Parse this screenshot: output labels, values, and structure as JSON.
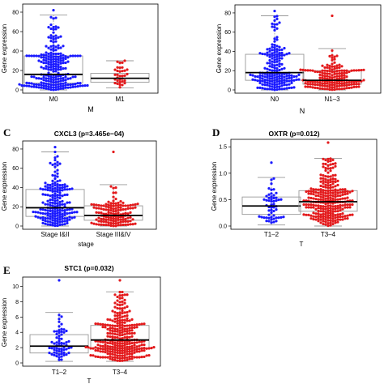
{
  "colors": {
    "group_a": "#1a1aff",
    "group_b": "#e31a1c",
    "box": "#999999",
    "median": "#000000",
    "frame": "#000000"
  },
  "chart_data": [
    {
      "type": "boxplot-beeswarm",
      "panel_letter": "",
      "title": "",
      "xlabel": "M",
      "ylabel": "Gene expression",
      "ylim": [
        0,
        85
      ],
      "yticks": [
        "0",
        "20",
        "40",
        "60",
        "80"
      ],
      "ytick_values": [
        0,
        20,
        40,
        60,
        80
      ],
      "categories": [
        "M0",
        "M1"
      ],
      "boxes": [
        {
          "min": 0,
          "q1": 7,
          "median": 16,
          "q3": 35,
          "max": 77,
          "n": 230,
          "outlier_max": 82,
          "skew": 2.3
        },
        {
          "min": 2,
          "q1": 8,
          "median": 12,
          "q3": 17,
          "max": 30,
          "n": 32,
          "outlier_max": 30,
          "skew": 1.5
        }
      ]
    },
    {
      "type": "boxplot-beeswarm",
      "panel_letter": "",
      "title": "",
      "xlabel": "N",
      "ylabel": "Gene expression",
      "ylim": [
        0,
        85
      ],
      "yticks": [
        "0",
        "20",
        "40",
        "60",
        "80"
      ],
      "ytick_values": [
        0,
        20,
        40,
        60,
        80
      ],
      "categories": [
        "N0",
        "N1–3"
      ],
      "boxes": [
        {
          "min": 0,
          "q1": 10,
          "median": 18,
          "q3": 37,
          "max": 77,
          "n": 190,
          "outlier_max": 82,
          "skew": 2.1
        },
        {
          "min": 0,
          "q1": 6,
          "median": 10,
          "q3": 20,
          "max": 43,
          "n": 170,
          "outlier_max": 77,
          "skew": 2.8
        }
      ]
    },
    {
      "type": "boxplot-beeswarm",
      "panel_letter": "C",
      "title": "CXCL3 (p=3.465e−04)",
      "xlabel": "stage",
      "ylabel": "Gene expression",
      "ylim": [
        0,
        85
      ],
      "yticks": [
        "0",
        "20",
        "40",
        "60",
        "80"
      ],
      "ytick_values": [
        0,
        20,
        40,
        60,
        80
      ],
      "categories": [
        "Stage I&II",
        "Stage III&IV"
      ],
      "boxes": [
        {
          "min": 0,
          "q1": 10,
          "median": 19,
          "q3": 38,
          "max": 77,
          "n": 190,
          "outlier_max": 82,
          "skew": 2.1
        },
        {
          "min": 0,
          "q1": 6,
          "median": 11,
          "q3": 21,
          "max": 43,
          "n": 140,
          "outlier_max": 77,
          "skew": 2.7
        }
      ]
    },
    {
      "type": "boxplot-beeswarm",
      "panel_letter": "D",
      "title": "OXTR (p=0.012)",
      "xlabel": "T",
      "ylabel": "Gene expression",
      "ylim": [
        0,
        1.58
      ],
      "yticks": [
        "0.0",
        "0.5",
        "1.0",
        "1.5"
      ],
      "ytick_values": [
        0,
        0.5,
        1.0,
        1.5
      ],
      "categories": [
        "T1–2",
        "T3–4"
      ],
      "boxes": [
        {
          "min": 0.02,
          "q1": 0.22,
          "median": 0.38,
          "q3": 0.55,
          "max": 0.92,
          "n": 55,
          "outlier_max": 1.2,
          "skew": 1.4
        },
        {
          "min": 0.0,
          "q1": 0.28,
          "median": 0.46,
          "q3": 0.67,
          "max": 1.28,
          "n": 270,
          "outlier_max": 1.58,
          "skew": 1.5
        }
      ]
    },
    {
      "type": "boxplot-beeswarm",
      "panel_letter": "E",
      "title": "STC1 (p=0.032)",
      "xlabel": "T",
      "ylabel": "Gene expression",
      "ylim": [
        0,
        10.8
      ],
      "yticks": [
        "0",
        "2",
        "4",
        "6",
        "8",
        "10"
      ],
      "ytick_values": [
        0,
        2,
        4,
        6,
        8,
        10
      ],
      "categories": [
        "T1–2",
        "T3–4"
      ],
      "boxes": [
        {
          "min": 0.2,
          "q1": 1.3,
          "median": 2.2,
          "q3": 3.7,
          "max": 6.6,
          "n": 65,
          "outlier_max": 10.8,
          "skew": 1.6
        },
        {
          "min": 0.2,
          "q1": 1.9,
          "median": 3.0,
          "q3": 4.9,
          "max": 9.3,
          "n": 290,
          "outlier_max": 10.8,
          "skew": 1.7
        }
      ]
    }
  ]
}
